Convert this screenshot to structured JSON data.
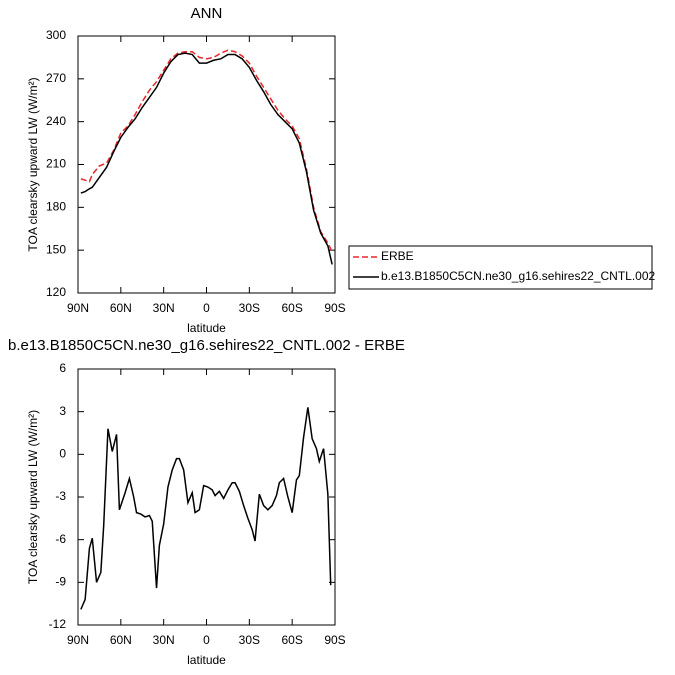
{
  "chart_data": [
    {
      "type": "line",
      "title": "ANN",
      "xlabel": "latitude",
      "ylabel": "TOA clearsky upward LW (W/m²)",
      "x": [
        88,
        85,
        82,
        80,
        75,
        70,
        65,
        60,
        55,
        50,
        45,
        40,
        35,
        30,
        25,
        20,
        15,
        10,
        5,
        0,
        -5,
        -10,
        -15,
        -20,
        -25,
        -30,
        -35,
        -40,
        -45,
        -50,
        -55,
        -60,
        -65,
        -70,
        -75,
        -80,
        -85,
        -88
      ],
      "series": [
        {
          "name": "ERBE",
          "color": "#e8262a",
          "dashed": true,
          "values": [
            200,
            199,
            198,
            203,
            209,
            211,
            220,
            232,
            237,
            245,
            254,
            262,
            268,
            276,
            284,
            288,
            289,
            289,
            285,
            284,
            285,
            288,
            290,
            289,
            286,
            281,
            272,
            264,
            256,
            248,
            242,
            237,
            228,
            207,
            180,
            163,
            155,
            149
          ]
        },
        {
          "name": "b.e13.B1850C5CN.ne30_g16.sehires22_CNTL.002",
          "color": "#000000",
          "dashed": false,
          "values": [
            190,
            191,
            193,
            194,
            201,
            208,
            219,
            229,
            236,
            242,
            250,
            257,
            264,
            274,
            282,
            287,
            288,
            287,
            281,
            281,
            283,
            284,
            287,
            287,
            284,
            278,
            269,
            261,
            252,
            245,
            240,
            235,
            225,
            205,
            178,
            162,
            153,
            140
          ]
        }
      ],
      "xlim": [
        90,
        -90
      ],
      "xticks": [
        {
          "value": 90,
          "label": "90N"
        },
        {
          "value": 60,
          "label": "60N"
        },
        {
          "value": 30,
          "label": "30N"
        },
        0,
        {
          "value": -30,
          "label": "30S"
        },
        {
          "value": -60,
          "label": "60S"
        },
        {
          "value": -90,
          "label": "90S"
        }
      ],
      "ylim": [
        120,
        300
      ],
      "yticks": [
        120,
        150,
        180,
        210,
        240,
        270,
        300
      ],
      "legend": "right"
    },
    {
      "type": "line",
      "title": "b.e13.B1850C5CN.ne30_g16.sehires22_CNTL.002 - ERBE",
      "xlabel": "latitude",
      "ylabel": "TOA clearsky upward LW (W/m²)",
      "x": [
        88,
        85,
        82,
        80,
        77,
        74,
        72,
        69,
        66,
        63,
        61,
        57,
        54,
        51,
        49,
        46,
        43,
        40,
        38,
        35,
        33,
        30,
        27,
        24,
        21,
        19,
        16,
        13,
        10,
        8,
        5,
        2,
        -1,
        -4,
        -6,
        -9,
        -12,
        -15,
        -18,
        -20,
        -23,
        -26,
        -29,
        -32,
        -34,
        -37,
        -40,
        -43,
        -46,
        -49,
        -51,
        -54,
        -57,
        -60,
        -63,
        -65,
        -68,
        -71,
        -74,
        -77,
        -79,
        -82,
        -85,
        -87
      ],
      "series": [
        {
          "color": "#000000",
          "dashed": false,
          "values": [
            -10.9,
            -10.2,
            -6.6,
            -5.9,
            -9,
            -8.3,
            -5,
            1.8,
            0.2,
            1.4,
            -3.9,
            -2.7,
            -1.7,
            -3,
            -4.1,
            -4.2,
            -4.4,
            -4.3,
            -4.7,
            -9.4,
            -6.4,
            -4.9,
            -2.3,
            -1.1,
            -0.3,
            -0.3,
            -1.1,
            -3.4,
            -2.7,
            -4.1,
            -3.9,
            -2.2,
            -2.3,
            -2.5,
            -2.9,
            -2.6,
            -3.1,
            -2.5,
            -2,
            -2,
            -2.6,
            -3.6,
            -4.5,
            -5.3,
            -6.1,
            -2.8,
            -3.6,
            -3.9,
            -3.6,
            -2.9,
            -2,
            -1.7,
            -3,
            -4.1,
            -1.8,
            -1.5,
            1.2,
            3.3,
            1.1,
            0.4,
            -0.5,
            0.4,
            -2.8,
            -9.2
          ]
        }
      ],
      "xlim": [
        90,
        -90
      ],
      "xticks": [
        {
          "value": 90,
          "label": "90N"
        },
        {
          "value": 60,
          "label": "60N"
        },
        {
          "value": 30,
          "label": "30N"
        },
        0,
        {
          "value": -30,
          "label": "30S"
        },
        {
          "value": -60,
          "label": "60S"
        },
        {
          "value": -90,
          "label": "90S"
        }
      ],
      "ylim": [
        -12,
        6
      ],
      "yticks": [
        -12,
        -9,
        -6,
        -3,
        0,
        3,
        6
      ]
    }
  ]
}
